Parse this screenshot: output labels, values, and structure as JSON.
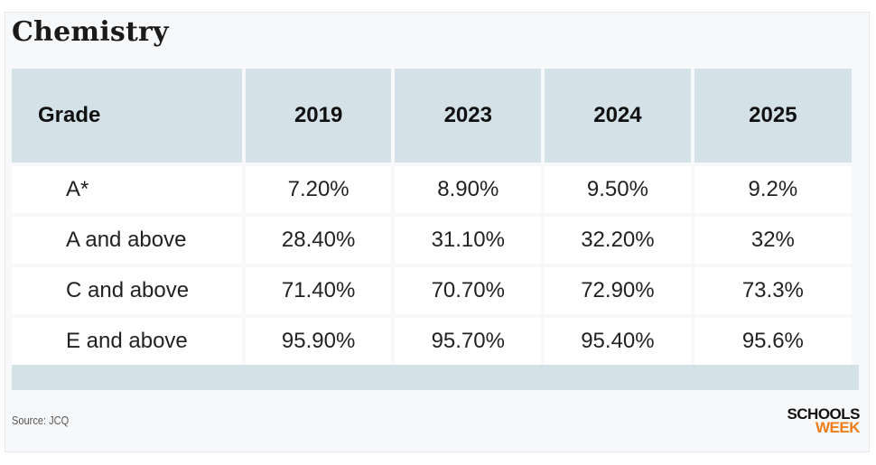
{
  "header": {
    "title": "Chemistry"
  },
  "table": {
    "columns": [
      "Grade",
      "2019",
      "2023",
      "2024",
      "2025"
    ],
    "rows": [
      {
        "grade": "A*",
        "values": [
          "7.20%",
          "8.90%",
          "9.50%",
          "9.2%"
        ]
      },
      {
        "grade": "A and above",
        "values": [
          "28.40%",
          "31.10%",
          "32.20%",
          "32%"
        ]
      },
      {
        "grade": "C and above",
        "values": [
          "71.40%",
          "70.70%",
          "72.90%",
          "73.3%"
        ]
      },
      {
        "grade": "E and above",
        "values": [
          "95.90%",
          "95.70%",
          "95.40%",
          "95.6%"
        ]
      }
    ]
  },
  "chart_data": {
    "type": "table",
    "title": "Chemistry",
    "columns": [
      "Grade",
      "2019",
      "2023",
      "2024",
      "2025"
    ],
    "rows": [
      [
        "A*",
        "7.20%",
        "8.90%",
        "9.50%",
        "9.2%"
      ],
      [
        "A and above",
        "28.40%",
        "31.10%",
        "32.20%",
        "32%"
      ],
      [
        "C and above",
        "71.40%",
        "70.70%",
        "72.90%",
        "73.3%"
      ],
      [
        "E and above",
        "95.90%",
        "95.70%",
        "95.40%",
        "95.6%"
      ]
    ]
  },
  "footer": {
    "source": "Source: JCQ",
    "logo_line1": "SCHOOLS",
    "logo_line2": "WEEK",
    "logo_color_primary": "#111111",
    "logo_color_accent": "#f07d1a"
  },
  "colors": {
    "header_fill": "#d4e1e7",
    "card_background": "#f7f8fa"
  }
}
